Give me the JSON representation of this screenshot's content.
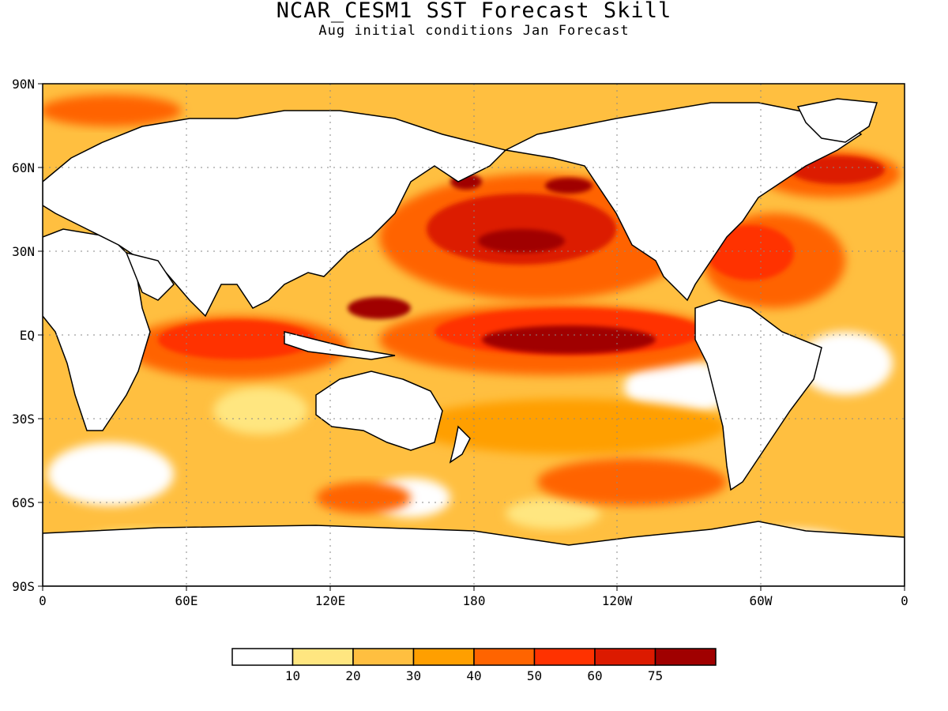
{
  "title": "NCAR_CESM1 SST Forecast Skill",
  "subtitle": "Aug initial conditions  Jan Forecast",
  "map": {
    "projection": "cylindrical-equidistant",
    "lon_range": [
      0,
      360
    ],
    "lat_range": [
      -90,
      90
    ],
    "lat_tick_labels": [
      "90N",
      "60N",
      "30N",
      "EQ",
      "30S",
      "60S",
      "90S"
    ],
    "lon_tick_labels": [
      "0",
      "60E",
      "120E",
      "180",
      "120W",
      "60W",
      "0"
    ],
    "gridlines": "dotted",
    "coastlines": true
  },
  "colorbar": {
    "labels": [
      "10",
      "20",
      "30",
      "40",
      "50",
      "60",
      "75"
    ],
    "colors": [
      "#ffffff",
      "#ffe680",
      "#ffbf40",
      "#ff9f00",
      "#ff6400",
      "#ff3200",
      "#dc1a00",
      "#a00000"
    ]
  }
}
